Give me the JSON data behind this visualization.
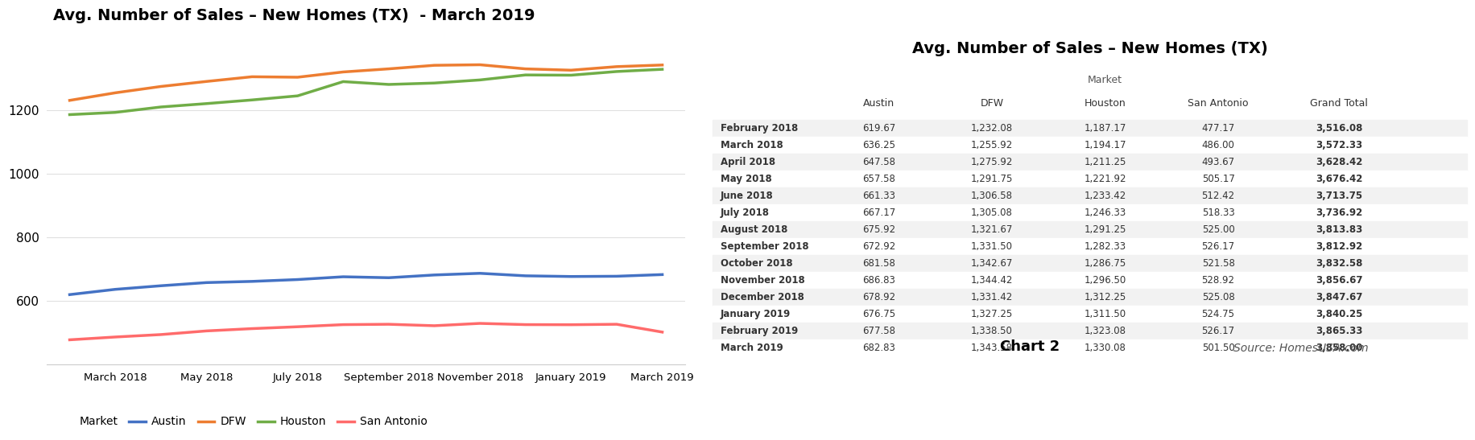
{
  "chart_title": "Avg. Number of Sales – New Homes (TX)  - March 2019",
  "table_title": "Avg. Number of Sales – New Homes (TX)",
  "months": [
    "February 2018",
    "March 2018",
    "April 2018",
    "May 2018",
    "June 2018",
    "July 2018",
    "August 2018",
    "September 2018",
    "October 2018",
    "November 2018",
    "December 2018",
    "January 2019",
    "February 2019",
    "March 2019"
  ],
  "austin": [
    619.67,
    636.25,
    647.58,
    657.58,
    661.33,
    667.17,
    675.92,
    672.92,
    681.58,
    686.83,
    678.92,
    676.75,
    677.58,
    682.83
  ],
  "dfw": [
    1232.08,
    1255.92,
    1275.92,
    1291.75,
    1306.58,
    1305.08,
    1321.67,
    1331.5,
    1342.67,
    1344.42,
    1331.42,
    1327.25,
    1338.5,
    1343.58
  ],
  "houston": [
    1187.17,
    1194.17,
    1211.25,
    1221.92,
    1233.42,
    1246.33,
    1291.25,
    1282.33,
    1286.75,
    1296.5,
    1312.25,
    1311.5,
    1323.08,
    1330.08
  ],
  "san_antonio": [
    477.17,
    486.0,
    493.67,
    505.17,
    512.42,
    518.33,
    525.0,
    526.17,
    521.58,
    528.92,
    525.08,
    524.75,
    526.17,
    501.5
  ],
  "grand_total": [
    3516.08,
    3572.33,
    3628.42,
    3676.42,
    3713.75,
    3736.92,
    3813.83,
    3812.92,
    3832.58,
    3856.67,
    3847.67,
    3840.25,
    3865.33,
    3858.0
  ],
  "color_austin": "#4472c4",
  "color_dfw": "#ed7d31",
  "color_houston": "#70ad47",
  "color_san_antonio": "#ff6b6b",
  "xtick_labels": [
    "March 2018",
    "May 2018",
    "July 2018",
    "September 2018",
    "November 2018",
    "January 2019",
    "March 2019"
  ],
  "xtick_positions": [
    1,
    3,
    5,
    7,
    9,
    11,
    13
  ],
  "ylim": [
    400,
    1450
  ],
  "yticks": [
    600,
    800,
    1000,
    1200
  ],
  "chart2_note": "Chart 2",
  "source_note": "Source: HomesUSA.com",
  "bg_color": "#ffffff",
  "line_width": 2.5
}
